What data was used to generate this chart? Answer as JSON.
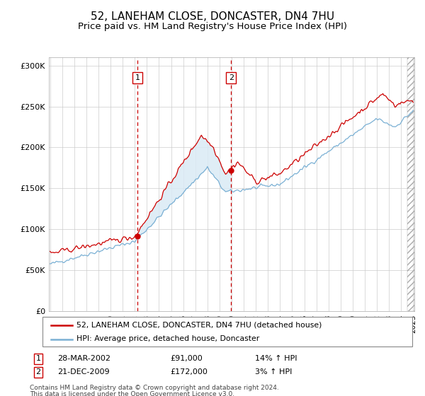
{
  "title": "52, LANEHAM CLOSE, DONCASTER, DN4 7HU",
  "subtitle": "Price paid vs. HM Land Registry's House Price Index (HPI)",
  "title_fontsize": 11,
  "subtitle_fontsize": 9.5,
  "ylabel_ticks": [
    0,
    50000,
    100000,
    150000,
    200000,
    250000,
    300000
  ],
  "ylabel_labels": [
    "£0",
    "£50K",
    "£100K",
    "£150K",
    "£200K",
    "£250K",
    "£300K"
  ],
  "ylim": [
    0,
    310000
  ],
  "sale1": {
    "date": "28-MAR-2002",
    "price": 91000,
    "hpi_pct": "14% ↑ HPI",
    "label": "1"
  },
  "sale2": {
    "date": "21-DEC-2009",
    "price": 172000,
    "hpi_pct": "3% ↑ HPI",
    "label": "2"
  },
  "sale1_x": 2002.21,
  "sale2_x": 2009.96,
  "line_red_color": "#cc0000",
  "line_blue_color": "#7ab0d4",
  "fill_color": "#daeaf5",
  "dashed_color": "#cc0000",
  "grid_color": "#cccccc",
  "background_color": "#ffffff",
  "legend_line1": "52, LANEHAM CLOSE, DONCASTER, DN4 7HU (detached house)",
  "legend_line2": "HPI: Average price, detached house, Doncaster",
  "footnote1": "Contains HM Land Registry data © Crown copyright and database right 2024.",
  "footnote2": "This data is licensed under the Open Government Licence v3.0."
}
